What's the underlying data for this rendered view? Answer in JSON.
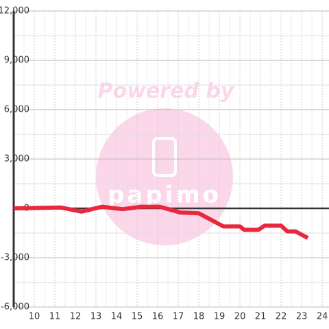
{
  "chart_data": {
    "type": "line",
    "watermark": "Powered by",
    "logo_text": "papimo",
    "x": [
      9,
      11.3,
      12.3,
      13.3,
      14.3,
      15.2,
      16.1,
      17.1,
      18,
      19.2,
      20,
      20.2,
      20.9,
      21.2,
      22,
      22.3,
      22.7,
      23.3
    ],
    "series": [
      {
        "color": "#e8283c",
        "values": [
          0,
          50,
          -200,
          100,
          -50,
          100,
          100,
          -250,
          -300,
          -1100,
          -1100,
          -1300,
          -1300,
          -1050,
          -1050,
          -1400,
          -1400,
          -1800
        ]
      }
    ],
    "xlim": [
      9,
      24.33
    ],
    "xticks": [
      10,
      11,
      12,
      13,
      14,
      15,
      16,
      17,
      18,
      19,
      20,
      21,
      22,
      23,
      24
    ],
    "ylim": [
      -6000,
      12000
    ],
    "yticks": [
      {
        "value": -6000,
        "label": "-6,000"
      },
      {
        "value": -3000,
        "label": "-3,000"
      },
      0,
      {
        "value": 3000,
        "label": "3,000"
      },
      {
        "value": 6000,
        "label": "6,000"
      },
      {
        "value": 9000,
        "label": "9,000"
      },
      {
        "value": 12000,
        "label": "12,000"
      }
    ],
    "grid": true
  }
}
